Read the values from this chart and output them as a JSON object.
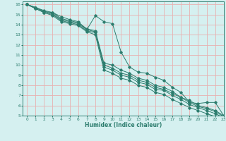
{
  "xlabel": "Humidex (Indice chaleur)",
  "bg_color": "#d5f0f0",
  "grid_color": "#e8b0b0",
  "line_color": "#2d7d6e",
  "xlim": [
    -0.5,
    23
  ],
  "ylim": [
    5,
    16.3
  ],
  "xticks": [
    0,
    1,
    2,
    3,
    4,
    5,
    6,
    7,
    8,
    9,
    10,
    11,
    12,
    13,
    14,
    15,
    16,
    17,
    18,
    19,
    20,
    21,
    22,
    23
  ],
  "yticks": [
    5,
    6,
    7,
    8,
    9,
    10,
    11,
    12,
    13,
    14,
    15,
    16
  ],
  "lines": [
    [
      16.0,
      15.7,
      15.3,
      15.2,
      14.8,
      14.5,
      14.3,
      13.5,
      14.9,
      14.3,
      14.1,
      11.3,
      9.8,
      9.3,
      9.2,
      8.8,
      8.5,
      7.8,
      7.3,
      6.3,
      6.2,
      6.3,
      6.3,
      5.0
    ],
    [
      16.0,
      15.7,
      15.4,
      15.2,
      14.6,
      14.4,
      14.2,
      13.6,
      13.4,
      10.2,
      10.0,
      9.5,
      9.2,
      8.7,
      8.5,
      8.0,
      7.8,
      7.4,
      6.8,
      6.5,
      6.0,
      5.8,
      5.5,
      5.0
    ],
    [
      16.0,
      15.7,
      15.3,
      15.1,
      14.5,
      14.3,
      14.1,
      13.5,
      13.3,
      10.0,
      9.7,
      9.2,
      9.0,
      8.5,
      8.3,
      7.8,
      7.6,
      7.2,
      6.8,
      6.3,
      5.9,
      5.7,
      5.4,
      4.9
    ],
    [
      16.0,
      15.6,
      15.2,
      15.0,
      14.4,
      14.2,
      14.0,
      13.4,
      13.2,
      9.8,
      9.5,
      9.0,
      8.8,
      8.3,
      8.1,
      7.6,
      7.5,
      7.0,
      6.6,
      6.1,
      5.8,
      5.5,
      5.2,
      4.8
    ],
    [
      16.0,
      15.6,
      15.2,
      14.9,
      14.3,
      14.1,
      13.9,
      13.3,
      13.0,
      9.5,
      9.2,
      8.7,
      8.5,
      8.0,
      7.8,
      7.3,
      7.1,
      6.6,
      6.2,
      5.8,
      5.5,
      5.2,
      4.9,
      4.6
    ]
  ]
}
